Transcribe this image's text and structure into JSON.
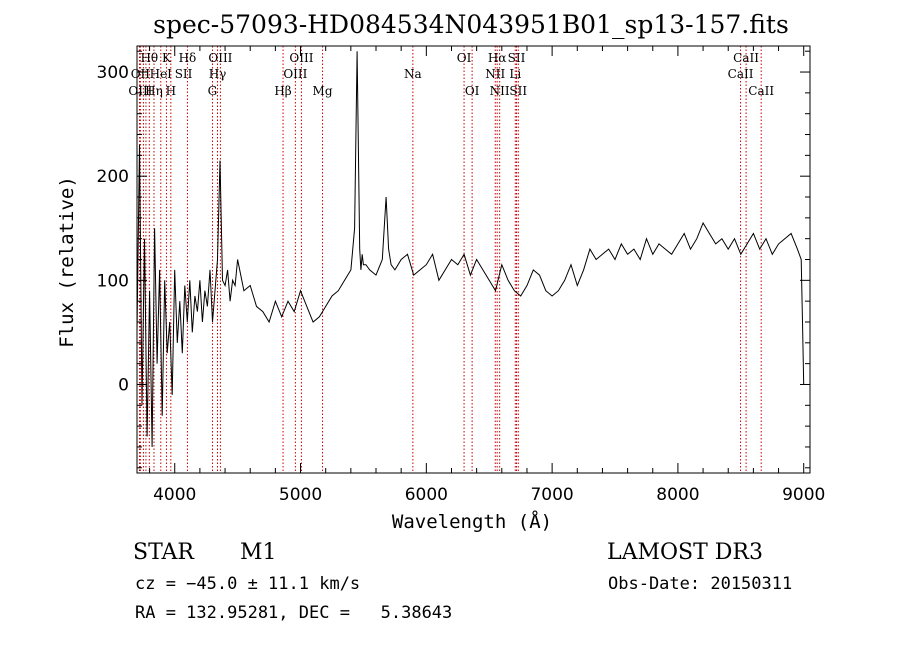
{
  "chart_data": {
    "type": "line",
    "title": "spec-57093-HD084534N043951B01_sp13-157.fits",
    "xlabel": "Wavelength (Å)",
    "ylabel": "Flux (relative)",
    "xlim": [
      3700,
      9050
    ],
    "ylim": [
      -85,
      325
    ],
    "xticks": [
      4000,
      5000,
      6000,
      7000,
      8000,
      9000
    ],
    "yticks": [
      0,
      100,
      200,
      300
    ],
    "series": [
      {
        "name": "flux",
        "x": [
          3700,
          3720,
          3740,
          3760,
          3780,
          3800,
          3820,
          3840,
          3860,
          3880,
          3900,
          3920,
          3940,
          3960,
          3980,
          4000,
          4020,
          4040,
          4060,
          4080,
          4100,
          4120,
          4140,
          4160,
          4180,
          4200,
          4220,
          4240,
          4260,
          4280,
          4300,
          4320,
          4340,
          4360,
          4380,
          4400,
          4420,
          4440,
          4460,
          4480,
          4500,
          4550,
          4600,
          4650,
          4700,
          4750,
          4800,
          4850,
          4900,
          4950,
          5000,
          5050,
          5100,
          5150,
          5200,
          5250,
          5300,
          5350,
          5400,
          5430,
          5450,
          5470,
          5480,
          5490,
          5500,
          5520,
          5550,
          5600,
          5650,
          5680,
          5700,
          5720,
          5750,
          5800,
          5850,
          5900,
          5950,
          6000,
          6050,
          6100,
          6150,
          6200,
          6250,
          6300,
          6350,
          6400,
          6450,
          6500,
          6550,
          6600,
          6650,
          6700,
          6750,
          6800,
          6850,
          6900,
          6950,
          7000,
          7050,
          7100,
          7150,
          7200,
          7250,
          7300,
          7350,
          7400,
          7450,
          7500,
          7550,
          7600,
          7650,
          7700,
          7750,
          7800,
          7850,
          7900,
          7950,
          8000,
          8050,
          8100,
          8150,
          8200,
          8250,
          8300,
          8350,
          8400,
          8450,
          8500,
          8550,
          8600,
          8650,
          8700,
          8750,
          8800,
          8850,
          8900,
          8950,
          8980,
          8990,
          9000
        ],
        "values": [
          50,
          230,
          -20,
          140,
          -50,
          90,
          -60,
          150,
          20,
          110,
          -30,
          100,
          30,
          60,
          -10,
          110,
          40,
          80,
          30,
          95,
          60,
          100,
          50,
          85,
          70,
          100,
          60,
          90,
          75,
          110,
          60,
          90,
          120,
          215,
          100,
          95,
          110,
          80,
          100,
          95,
          120,
          90,
          95,
          75,
          70,
          60,
          80,
          65,
          80,
          70,
          90,
          75,
          60,
          65,
          75,
          85,
          90,
          100,
          110,
          150,
          320,
          130,
          110,
          125,
          115,
          115,
          110,
          105,
          120,
          180,
          130,
          115,
          110,
          120,
          125,
          105,
          110,
          115,
          125,
          100,
          110,
          120,
          115,
          125,
          105,
          120,
          110,
          100,
          90,
          115,
          100,
          90,
          85,
          95,
          110,
          105,
          90,
          85,
          90,
          100,
          115,
          95,
          110,
          130,
          120,
          125,
          130,
          120,
          135,
          125,
          130,
          120,
          140,
          125,
          135,
          130,
          125,
          135,
          145,
          130,
          140,
          155,
          145,
          135,
          140,
          130,
          140,
          125,
          135,
          145,
          130,
          140,
          125,
          135,
          140,
          145,
          130,
          120,
          60,
          0
        ]
      }
    ],
    "line_groups": [
      {
        "wavelengths": [
          3720,
          3727,
          3751,
          3771,
          3798,
          3835,
          3889,
          3934,
          3969,
          4101,
          4300,
          4340,
          4363,
          4861,
          4959,
          5007,
          5175,
          5893,
          6300,
          6364,
          6548,
          6563,
          6583,
          6707,
          6717,
          6731,
          8498,
          8542,
          8662
        ]
      }
    ],
    "line_labels": [
      {
        "text": "Hθ",
        "wavelength": 3798,
        "row": 1
      },
      {
        "text": "K",
        "wavelength": 3934,
        "row": 1
      },
      {
        "text": "Hδ",
        "wavelength": 4101,
        "row": 1
      },
      {
        "text": "OII",
        "wavelength": 3727,
        "row": 2
      },
      {
        "text": "HeI",
        "wavelength": 3889,
        "row": 2
      },
      {
        "text": "SII",
        "wavelength": 4070,
        "row": 2
      },
      {
        "text": "OIII",
        "wavelength": 3727,
        "row": 3
      },
      {
        "text": "Hη",
        "wavelength": 3835,
        "row": 3
      },
      {
        "text": "H",
        "wavelength": 3969,
        "row": 3
      },
      {
        "text": "OIII",
        "wavelength": 4363,
        "row": 1
      },
      {
        "text": "Hγ",
        "wavelength": 4340,
        "row": 2
      },
      {
        "text": "G",
        "wavelength": 4300,
        "row": 3
      },
      {
        "text": "OIII",
        "wavelength": 5007,
        "row": 1
      },
      {
        "text": "OIII",
        "wavelength": 4959,
        "row": 2
      },
      {
        "text": "Hβ",
        "wavelength": 4861,
        "row": 3
      },
      {
        "text": "Mg",
        "wavelength": 5175,
        "row": 3
      },
      {
        "text": "Na",
        "wavelength": 5893,
        "row": 2
      },
      {
        "text": "OI",
        "wavelength": 6300,
        "row": 1
      },
      {
        "text": "OI",
        "wavelength": 6364,
        "row": 3
      },
      {
        "text": "Hα",
        "wavelength": 6563,
        "row": 1
      },
      {
        "text": "SII",
        "wavelength": 6717,
        "row": 1
      },
      {
        "text": "NII",
        "wavelength": 6548,
        "row": 2
      },
      {
        "text": "Li",
        "wavelength": 6707,
        "row": 2
      },
      {
        "text": "NII",
        "wavelength": 6583,
        "row": 3
      },
      {
        "text": "SII",
        "wavelength": 6731,
        "row": 3
      },
      {
        "text": "CaII",
        "wavelength": 8542,
        "row": 1
      },
      {
        "text": "CaII",
        "wavelength": 8498,
        "row": 2
      },
      {
        "text": "CaII",
        "wavelength": 8662,
        "row": 3
      }
    ],
    "colors": {
      "spectrum": "#000000",
      "line_markers": "#cc0000",
      "frame": "#000000"
    }
  },
  "info": {
    "object_class": "STAR",
    "subclass": "M1",
    "survey": "LAMOST DR3",
    "cz": "cz = −45.0 ± 11.1 km/s",
    "obs_date": "Obs-Date: 20150311",
    "coords": "RA = 132.95281, DEC =   5.38643"
  }
}
